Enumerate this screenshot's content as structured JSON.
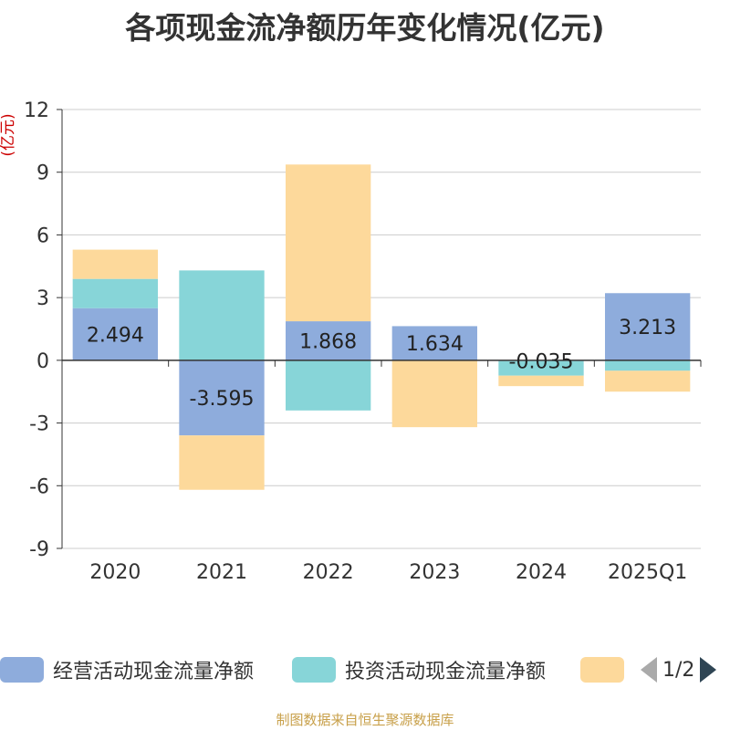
{
  "title": "各项现金流净额历年变化情况(亿元)",
  "source": "制图数据来自恒生聚源数据库",
  "legend": {
    "page_indicator": "1/2",
    "visible_items": [
      {
        "label": "经营活动现金流量净额",
        "color": "#8eacdc"
      },
      {
        "label": "投资活动现金流量净额",
        "color": "#87d5d8"
      },
      {
        "label": "",
        "color": "#fdd99b"
      }
    ]
  },
  "chart_data": {
    "type": "bar",
    "stacked": true,
    "title": "各项现金流净额历年变化情况(亿元)",
    "ylabel": "(亿元)",
    "xlabel": "",
    "ylim": [
      -9,
      12
    ],
    "yticks": [
      -9,
      -6,
      -3,
      0,
      3,
      6,
      9,
      12
    ],
    "categories": [
      "2020",
      "2021",
      "2022",
      "2023",
      "2024",
      "2025Q1"
    ],
    "series": [
      {
        "name": "经营活动现金流量净额",
        "color": "#8eacdc",
        "values": [
          2.494,
          -3.595,
          1.868,
          1.634,
          -0.035,
          3.213
        ],
        "labels": [
          "2.494",
          "-3.595",
          "1.868",
          "1.634",
          "-0.035",
          "3.213"
        ]
      },
      {
        "name": "投资活动现金流量净额",
        "color": "#87d5d8",
        "values": [
          1.4,
          4.3,
          -2.4,
          0.0,
          -0.7,
          -0.5
        ]
      },
      {
        "name": "",
        "color": "#fdd99b",
        "values": [
          1.4,
          -2.6,
          7.5,
          -3.2,
          -0.5,
          -1.0
        ]
      }
    ]
  }
}
